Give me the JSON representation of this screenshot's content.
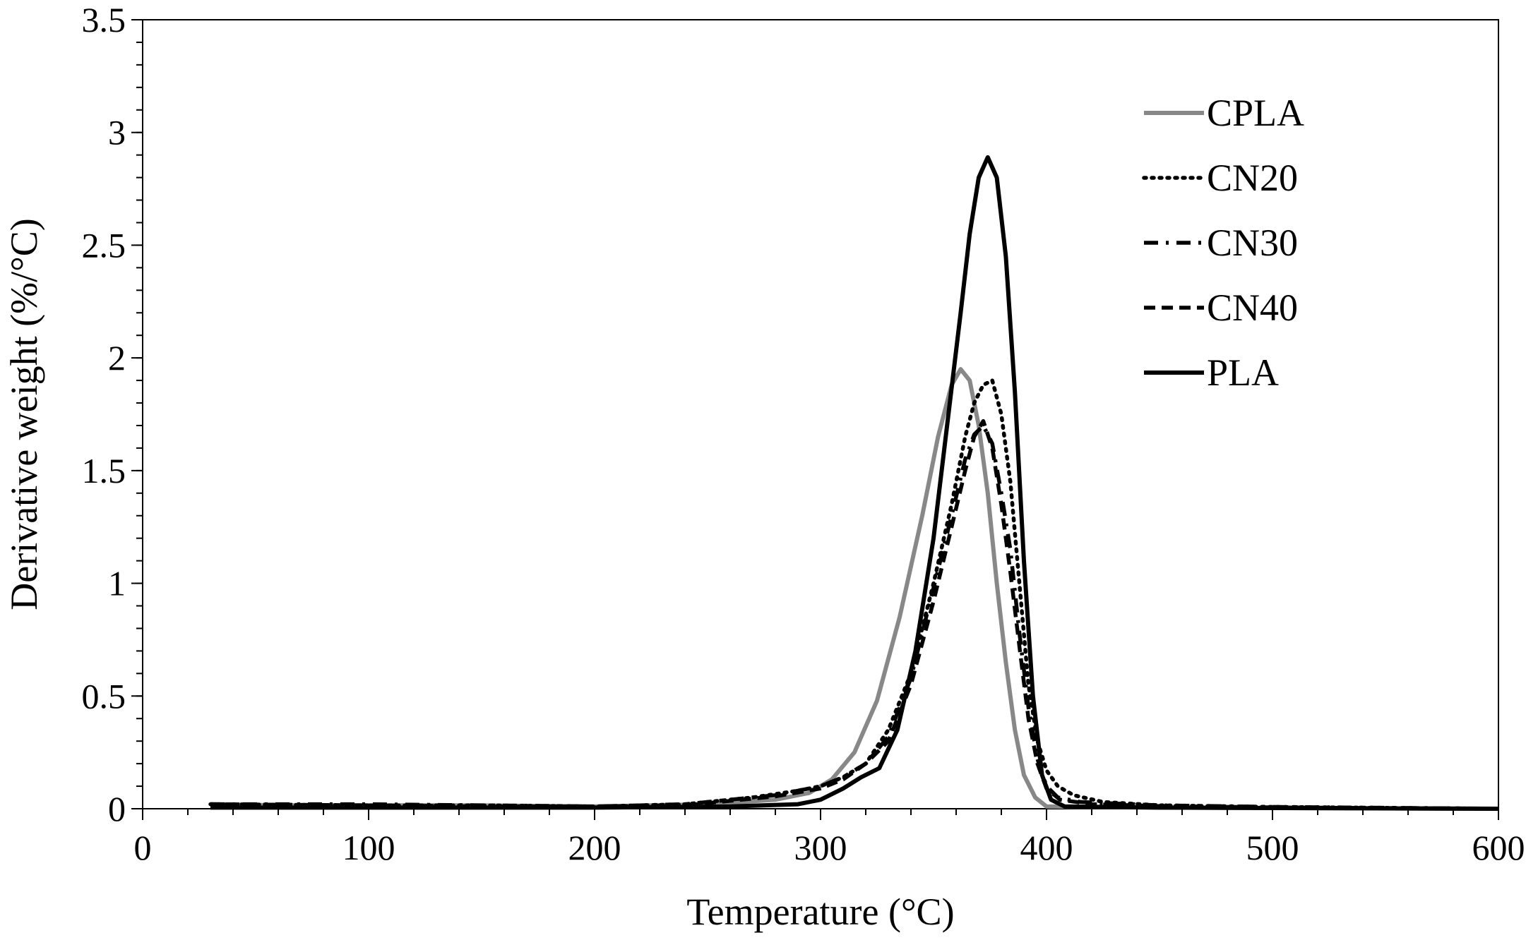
{
  "chart_data": {
    "type": "line",
    "title": "",
    "xlabel": "Temperature (°C)",
    "ylabel": "Derivative weight (%/°C)",
    "xlim": [
      0,
      600
    ],
    "ylim": [
      0,
      3.5
    ],
    "x_ticks": [
      0,
      100,
      200,
      300,
      400,
      500,
      600
    ],
    "y_ticks": [
      0,
      0.5,
      1,
      1.5,
      2,
      2.5,
      3,
      3.5
    ],
    "x_tick_labels": [
      "0",
      "100",
      "200",
      "300",
      "400",
      "500",
      "600"
    ],
    "y_tick_labels": [
      "0",
      "0.5",
      "1",
      "1.5",
      "2",
      "2.5",
      "3",
      "3.5"
    ],
    "grid": false,
    "legend_position": "top-right",
    "series": [
      {
        "name": "CPLA",
        "color": "#888888",
        "style": "solid",
        "points": [
          [
            30,
            0.02
          ],
          [
            60,
            0.015
          ],
          [
            100,
            0.015
          ],
          [
            150,
            0.015
          ],
          [
            200,
            0.01
          ],
          [
            250,
            0.02
          ],
          [
            280,
            0.04
          ],
          [
            295,
            0.07
          ],
          [
            305,
            0.13
          ],
          [
            315,
            0.25
          ],
          [
            325,
            0.48
          ],
          [
            335,
            0.85
          ],
          [
            345,
            1.3
          ],
          [
            352,
            1.65
          ],
          [
            358,
            1.88
          ],
          [
            362,
            1.95
          ],
          [
            366,
            1.9
          ],
          [
            370,
            1.7
          ],
          [
            374,
            1.4
          ],
          [
            378,
            1.0
          ],
          [
            382,
            0.65
          ],
          [
            386,
            0.35
          ],
          [
            390,
            0.15
          ],
          [
            395,
            0.05
          ],
          [
            400,
            0.01
          ],
          [
            450,
            0.005
          ],
          [
            500,
            0.003
          ],
          [
            600,
            0.0
          ]
        ]
      },
      {
        "name": "CN20",
        "color": "#000000",
        "style": "dotted",
        "points": [
          [
            30,
            0.02
          ],
          [
            100,
            0.015
          ],
          [
            150,
            0.015
          ],
          [
            200,
            0.01
          ],
          [
            240,
            0.02
          ],
          [
            270,
            0.05
          ],
          [
            290,
            0.08
          ],
          [
            300,
            0.1
          ],
          [
            310,
            0.14
          ],
          [
            320,
            0.2
          ],
          [
            330,
            0.35
          ],
          [
            340,
            0.6
          ],
          [
            350,
            1.0
          ],
          [
            358,
            1.35
          ],
          [
            364,
            1.65
          ],
          [
            368,
            1.8
          ],
          [
            372,
            1.88
          ],
          [
            376,
            1.9
          ],
          [
            380,
            1.75
          ],
          [
            384,
            1.45
          ],
          [
            388,
            1.0
          ],
          [
            392,
            0.55
          ],
          [
            396,
            0.3
          ],
          [
            400,
            0.17
          ],
          [
            405,
            0.1
          ],
          [
            412,
            0.06
          ],
          [
            425,
            0.03
          ],
          [
            450,
            0.015
          ],
          [
            500,
            0.008
          ],
          [
            600,
            0.0
          ]
        ]
      },
      {
        "name": "CN30",
        "color": "#000000",
        "style": "dash-dot",
        "points": [
          [
            30,
            0.02
          ],
          [
            100,
            0.02
          ],
          [
            150,
            0.015
          ],
          [
            200,
            0.01
          ],
          [
            240,
            0.02
          ],
          [
            260,
            0.04
          ],
          [
            280,
            0.06
          ],
          [
            300,
            0.1
          ],
          [
            310,
            0.14
          ],
          [
            320,
            0.2
          ],
          [
            330,
            0.32
          ],
          [
            340,
            0.58
          ],
          [
            350,
            0.98
          ],
          [
            358,
            1.3
          ],
          [
            364,
            1.55
          ],
          [
            368,
            1.66
          ],
          [
            372,
            1.7
          ],
          [
            376,
            1.62
          ],
          [
            380,
            1.4
          ],
          [
            384,
            1.15
          ],
          [
            388,
            0.78
          ],
          [
            392,
            0.45
          ],
          [
            396,
            0.22
          ],
          [
            400,
            0.1
          ],
          [
            405,
            0.05
          ],
          [
            415,
            0.03
          ],
          [
            450,
            0.015
          ],
          [
            500,
            0.008
          ],
          [
            600,
            0.0
          ]
        ]
      },
      {
        "name": "CN40",
        "color": "#000000",
        "style": "dashed",
        "points": [
          [
            30,
            0.02
          ],
          [
            100,
            0.015
          ],
          [
            150,
            0.01
          ],
          [
            200,
            0.01
          ],
          [
            240,
            0.015
          ],
          [
            260,
            0.035
          ],
          [
            280,
            0.055
          ],
          [
            300,
            0.09
          ],
          [
            310,
            0.13
          ],
          [
            320,
            0.2
          ],
          [
            330,
            0.3
          ],
          [
            340,
            0.55
          ],
          [
            350,
            0.92
          ],
          [
            358,
            1.25
          ],
          [
            364,
            1.5
          ],
          [
            368,
            1.65
          ],
          [
            372,
            1.72
          ],
          [
            376,
            1.6
          ],
          [
            380,
            1.35
          ],
          [
            384,
            1.05
          ],
          [
            388,
            0.72
          ],
          [
            392,
            0.4
          ],
          [
            396,
            0.2
          ],
          [
            400,
            0.09
          ],
          [
            406,
            0.04
          ],
          [
            420,
            0.02
          ],
          [
            450,
            0.012
          ],
          [
            500,
            0.006
          ],
          [
            600,
            0.0
          ]
        ]
      },
      {
        "name": "PLA",
        "color": "#000000",
        "style": "solid",
        "points": [
          [
            30,
            0.005
          ],
          [
            100,
            0.005
          ],
          [
            200,
            0.005
          ],
          [
            260,
            0.01
          ],
          [
            290,
            0.02
          ],
          [
            300,
            0.04
          ],
          [
            310,
            0.09
          ],
          [
            318,
            0.14
          ],
          [
            326,
            0.18
          ],
          [
            334,
            0.35
          ],
          [
            342,
            0.7
          ],
          [
            350,
            1.2
          ],
          [
            356,
            1.7
          ],
          [
            362,
            2.2
          ],
          [
            366,
            2.55
          ],
          [
            370,
            2.8
          ],
          [
            374,
            2.89
          ],
          [
            378,
            2.8
          ],
          [
            382,
            2.45
          ],
          [
            386,
            1.85
          ],
          [
            390,
            1.1
          ],
          [
            394,
            0.5
          ],
          [
            398,
            0.15
          ],
          [
            402,
            0.04
          ],
          [
            408,
            0.01
          ],
          [
            450,
            0.005
          ],
          [
            600,
            0.0
          ]
        ]
      }
    ]
  }
}
